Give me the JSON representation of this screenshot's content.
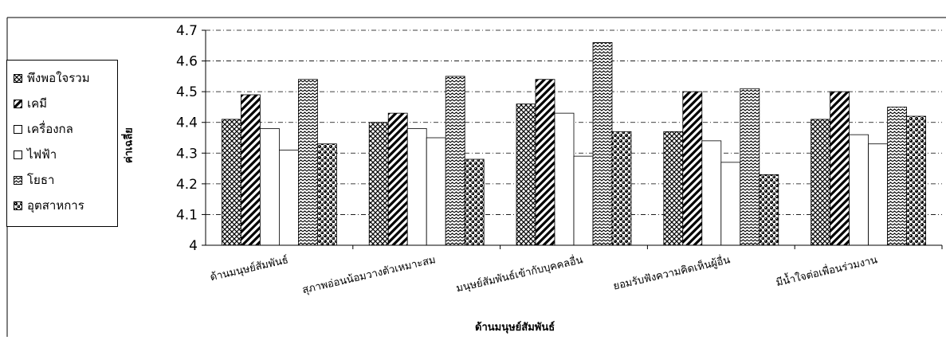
{
  "chart_data": {
    "type": "bar",
    "title": "",
    "xlabel": "ด้านมนุษย์สัมพันธ์",
    "ylabel": "ค่าเฉลี่ย",
    "ylim": [
      4,
      4.7
    ],
    "yticks": [
      "4",
      "4.1",
      "4.2",
      "4.3",
      "4.4",
      "4.5",
      "4.6",
      "4.7"
    ],
    "grid": true,
    "legend_position": "left",
    "categories": [
      "ด้านมนุษย์สัมพันธ์",
      "สุภาพอ่อนน้อมวางตัวเหมาะสม",
      "มนุษย์สัมพันธ์เข้ากับบุคคลอื่น",
      "ยอมรับฟังความคิดเห็นผู้อื่น",
      "มีน้ำใจต่อเพื่อนร่วมงาน"
    ],
    "series": [
      {
        "name": "พึงพอใจรวม",
        "pattern": "crosshatch",
        "values": [
          4.41,
          4.4,
          4.46,
          4.37,
          4.41
        ]
      },
      {
        "name": "เคมี",
        "pattern": "diagonal",
        "values": [
          4.49,
          4.43,
          4.54,
          4.5,
          4.5
        ]
      },
      {
        "name": "เครื่องกล",
        "pattern": "blank",
        "values": [
          4.38,
          4.38,
          4.43,
          4.34,
          4.36
        ]
      },
      {
        "name": "ไฟฟ้า",
        "pattern": "blank",
        "values": [
          4.31,
          4.35,
          4.29,
          4.27,
          4.33
        ]
      },
      {
        "name": "โยธา",
        "pattern": "zigzag",
        "values": [
          4.54,
          4.55,
          4.66,
          4.51,
          4.45
        ]
      },
      {
        "name": "อุตสาหการ",
        "pattern": "dots",
        "values": [
          4.33,
          4.28,
          4.37,
          4.23,
          4.42
        ]
      }
    ]
  }
}
